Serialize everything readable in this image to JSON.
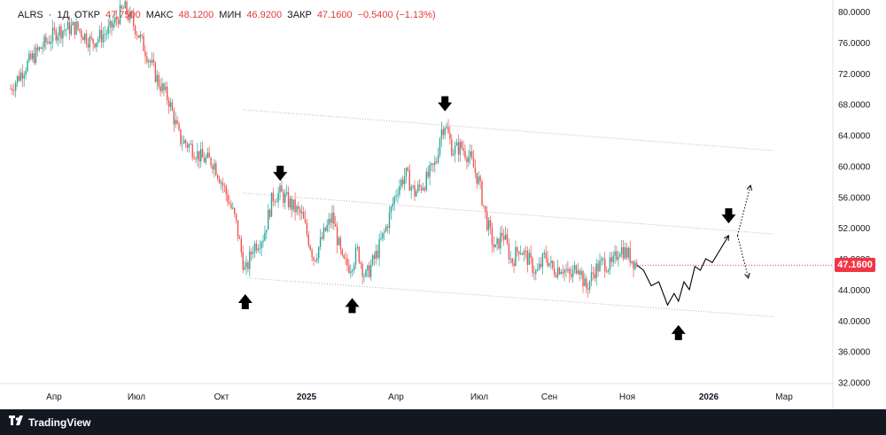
{
  "header": {
    "symbol": "ALRS",
    "interval": "1Д",
    "open_label": "ОТКР",
    "open_value": "47.7500",
    "high_label": "МАКС",
    "high_value": "48.1200",
    "low_label": "МИН",
    "low_value": "46.9200",
    "close_label": "ЗАКР",
    "close_value": "47.1600",
    "change_value": "−0.5400 (−1.13%)"
  },
  "last_price": "47.1600",
  "brand": {
    "name": "TradingView",
    "icon": "tradingview-logo-icon"
  },
  "colors": {
    "up": "#26a69a",
    "down": "#ef5350",
    "price_tag": "#f23645",
    "footer": "#131722",
    "channel": "#b2b5be"
  },
  "chart_data": {
    "type": "candlestick",
    "symbol": "ALRS",
    "interval": "1D",
    "y_axis": {
      "range": [
        28.5,
        81.5
      ],
      "ticks": [
        "80.0000",
        "76.0000",
        "72.0000",
        "68.0000",
        "64.0000",
        "60.0000",
        "56.0000",
        "52.0000",
        "48.0000",
        "44.0000",
        "40.0000",
        "36.0000",
        "32.0000"
      ]
    },
    "x_axis": {
      "ticks": [
        "Апр",
        "Июл",
        "Окт",
        "2025",
        "Апр",
        "Июл",
        "Сен",
        "Ноя",
        "2026",
        "Мар"
      ]
    },
    "price_path": [
      [
        "2024-02-01",
        70.0
      ],
      [
        "2024-02-15",
        73.0
      ],
      [
        "2024-03-01",
        75.5
      ],
      [
        "2024-03-15",
        77.5
      ],
      [
        "2024-04-01",
        78.0
      ],
      [
        "2024-04-15",
        76.0
      ],
      [
        "2024-05-01",
        77.5
      ],
      [
        "2024-05-15",
        80.5
      ],
      [
        "2024-05-25",
        78.0
      ],
      [
        "2024-06-05",
        74.5
      ],
      [
        "2024-06-15",
        71.0
      ],
      [
        "2024-06-25",
        68.5
      ],
      [
        "2024-07-05",
        63.5
      ],
      [
        "2024-07-15",
        62.5
      ],
      [
        "2024-07-25",
        61.0
      ],
      [
        "2024-08-05",
        60.5
      ],
      [
        "2024-08-15",
        57.0
      ],
      [
        "2024-08-25",
        53.0
      ],
      [
        "2024-09-03",
        46.0
      ],
      [
        "2024-09-10",
        49.5
      ],
      [
        "2024-09-20",
        51.0
      ],
      [
        "2024-09-28",
        56.0
      ],
      [
        "2024-10-05",
        56.5
      ],
      [
        "2024-10-15",
        55.0
      ],
      [
        "2024-10-25",
        53.5
      ],
      [
        "2024-11-05",
        48.0
      ],
      [
        "2024-11-15",
        51.5
      ],
      [
        "2024-11-22",
        53.5
      ],
      [
        "2024-12-01",
        47.5
      ],
      [
        "2024-12-08",
        47.0
      ],
      [
        "2024-12-15",
        49.0
      ],
      [
        "2024-12-22",
        45.5
      ],
      [
        "2025-01-01",
        48.5
      ],
      [
        "2025-01-10",
        52.0
      ],
      [
        "2025-01-20",
        57.0
      ],
      [
        "2025-01-28",
        59.0
      ],
      [
        "2025-02-05",
        56.5
      ],
      [
        "2025-02-15",
        58.0
      ],
      [
        "2025-02-25",
        60.5
      ],
      [
        "2025-03-01",
        64.5
      ],
      [
        "2025-03-05",
        65.5
      ],
      [
        "2025-03-12",
        62.0
      ],
      [
        "2025-03-20",
        62.5
      ],
      [
        "2025-03-28",
        61.0
      ],
      [
        "2025-04-05",
        58.0
      ],
      [
        "2025-04-12",
        53.0
      ],
      [
        "2025-04-20",
        49.0
      ],
      [
        "2025-04-27",
        51.5
      ],
      [
        "2025-05-05",
        47.5
      ],
      [
        "2025-05-12",
        49.5
      ],
      [
        "2025-05-20",
        48.0
      ],
      [
        "2025-05-28",
        46.0
      ],
      [
        "2025-06-05",
        48.5
      ],
      [
        "2025-06-12",
        46.5
      ],
      [
        "2025-06-20",
        47.0
      ],
      [
        "2025-06-28",
        45.5
      ],
      [
        "2025-07-05",
        47.5
      ],
      [
        "2025-07-12",
        44.0
      ],
      [
        "2025-07-20",
        46.5
      ],
      [
        "2025-07-28",
        47.5
      ],
      [
        "2025-08-05",
        47.0
      ],
      [
        "2025-08-12",
        49.5
      ],
      [
        "2025-08-20",
        48.5
      ],
      [
        "2025-08-28",
        47.16
      ]
    ],
    "projection": [
      [
        "2025-09-03",
        46.5
      ],
      [
        "2025-09-10",
        44.5
      ],
      [
        "2025-09-17",
        45.0
      ],
      [
        "2025-09-25",
        42.0
      ],
      [
        "2025-10-01",
        43.5
      ],
      [
        "2025-10-05",
        42.5
      ],
      [
        "2025-10-10",
        45.0
      ],
      [
        "2025-10-15",
        44.0
      ],
      [
        "2025-10-20",
        47.0
      ],
      [
        "2025-10-25",
        46.5
      ],
      [
        "2025-10-30",
        48.0
      ],
      [
        "2025-11-05",
        47.5
      ],
      [
        "2025-11-20",
        51.0
      ]
    ],
    "projection_branches": [
      [
        [
          "2025-11-20",
          51.0
        ],
        [
          "2025-12-10",
          57.5
        ]
      ],
      [
        [
          "2025-11-20",
          51.0
        ],
        [
          "2025-12-08",
          45.5
        ]
      ]
    ],
    "channel_lines": [
      [
        [
          "2024-09-05",
          45.5
        ],
        [
          "2025-12-31",
          40.5
        ]
      ],
      [
        [
          "2024-09-01",
          56.5
        ],
        [
          "2025-12-31",
          51.2
        ]
      ],
      [
        [
          "2024-09-01",
          67.3
        ],
        [
          "2025-12-31",
          62.0
        ]
      ]
    ],
    "markers": [
      {
        "type": "arrow-down",
        "date": "2024-10-05",
        "price": 59.0
      },
      {
        "type": "arrow-up",
        "date": "2024-09-03",
        "price": 42.5
      },
      {
        "type": "arrow-up",
        "date": "2024-12-10",
        "price": 42.0
      },
      {
        "type": "arrow-down",
        "date": "2025-03-05",
        "price": 68.0
      },
      {
        "type": "arrow-up",
        "date": "2025-10-05",
        "price": 38.5
      },
      {
        "type": "arrow-down",
        "date": "2025-11-20",
        "price": 53.5
      }
    ],
    "last_price": 47.16
  }
}
